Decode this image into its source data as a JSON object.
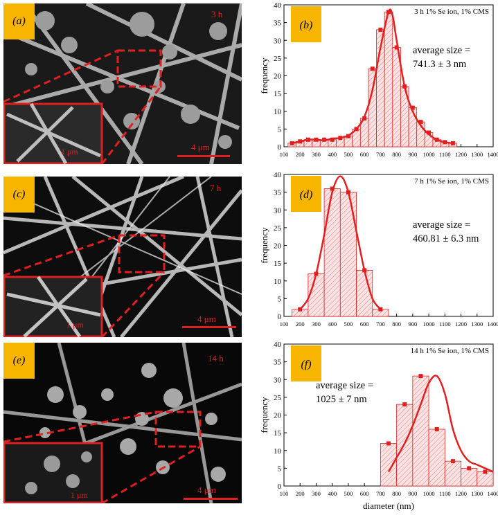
{
  "sem_panels": [
    {
      "tag": "(a)",
      "time": "3 h",
      "scale": "4 μm",
      "inset_scale": "1 μm"
    },
    {
      "tag": "(c)",
      "time": "7 h",
      "scale": "4 μm",
      "inset_scale": "1 μm"
    },
    {
      "tag": "(e)",
      "time": "14 h",
      "scale": "4 μm",
      "inset_scale": "1 μm"
    }
  ],
  "chart_data": [
    {
      "type": "bar",
      "panel_tag": "(b)",
      "title": "3 h 1% Se ion, 1% CMS",
      "annotation": [
        "average size =",
        "741.3 ± 3 nm"
      ],
      "ylabel": "frequency",
      "xlabel": "",
      "xlim": [
        100,
        1400
      ],
      "ylim": [
        0,
        40
      ],
      "xticks": [
        100,
        200,
        300,
        400,
        500,
        600,
        700,
        800,
        900,
        1000,
        1100,
        1200,
        1300,
        1400
      ],
      "yticks": [
        0,
        5,
        10,
        15,
        20,
        25,
        30,
        35,
        40
      ],
      "bin_width": 50,
      "bins": [
        150,
        200,
        250,
        300,
        350,
        400,
        450,
        500,
        550,
        600,
        650,
        700,
        750,
        800,
        850,
        900,
        950,
        1000,
        1050,
        1100,
        1150
      ],
      "values": [
        1,
        1.5,
        2,
        2,
        2,
        2,
        2.5,
        3,
        5,
        8,
        22,
        33,
        38,
        28,
        17,
        11,
        7,
        4,
        2,
        1.3,
        1
      ],
      "curve": [
        [
          150,
          1
        ],
        [
          200,
          1.5
        ],
        [
          250,
          2
        ],
        [
          300,
          2
        ],
        [
          350,
          1.8
        ],
        [
          400,
          2.3
        ],
        [
          450,
          2.5
        ],
        [
          500,
          3.2
        ],
        [
          550,
          5
        ],
        [
          600,
          8.5
        ],
        [
          650,
          16
        ],
        [
          700,
          28
        ],
        [
          750,
          38
        ],
        [
          775,
          37
        ],
        [
          800,
          30
        ],
        [
          850,
          17
        ],
        [
          900,
          10
        ],
        [
          950,
          6
        ],
        [
          1000,
          3.5
        ],
        [
          1050,
          2
        ],
        [
          1100,
          1.3
        ],
        [
          1150,
          1
        ]
      ],
      "color": "#e02020"
    },
    {
      "type": "bar",
      "panel_tag": "(d)",
      "title": "7 h 1% Se ion, 1% CMS",
      "annotation": [
        "average size =",
        "460.81 ± 6.3 nm"
      ],
      "ylabel": "frequency",
      "xlabel": "",
      "xlim": [
        100,
        1400
      ],
      "ylim": [
        0,
        40
      ],
      "xticks": [
        100,
        200,
        300,
        400,
        500,
        600,
        700,
        800,
        900,
        1000,
        1100,
        1200,
        1300,
        1400
      ],
      "yticks": [
        0,
        5,
        10,
        15,
        20,
        25,
        30,
        35,
        40
      ],
      "bin_width": 100,
      "bins": [
        200,
        300,
        400,
        500,
        600,
        700
      ],
      "values": [
        2,
        12,
        36,
        35,
        13,
        2
      ],
      "curve": [
        [
          200,
          2
        ],
        [
          250,
          5
        ],
        [
          300,
          12
        ],
        [
          350,
          23
        ],
        [
          400,
          35
        ],
        [
          450,
          39.5
        ],
        [
          500,
          35
        ],
        [
          550,
          24
        ],
        [
          600,
          13
        ],
        [
          650,
          5
        ],
        [
          700,
          2
        ]
      ],
      "color": "#e02020"
    },
    {
      "type": "bar",
      "panel_tag": "(f)",
      "title": "14 h 1% Se ion, 1% CMS",
      "annotation": [
        "average size =",
        "1025 ± 7 nm"
      ],
      "ylabel": "frequency",
      "xlabel": "diameter (nm)",
      "xlim": [
        100,
        1400
      ],
      "ylim": [
        0,
        40
      ],
      "xticks": [
        100,
        200,
        300,
        400,
        500,
        600,
        700,
        800,
        900,
        1000,
        1100,
        1200,
        1300,
        1400
      ],
      "yticks": [
        0,
        5,
        10,
        15,
        20,
        25,
        30,
        35,
        40
      ],
      "bin_width": 100,
      "bins": [
        750,
        850,
        950,
        1050,
        1150,
        1250,
        1350
      ],
      "values": [
        12,
        23,
        31,
        16,
        7,
        5,
        4
      ],
      "curve": [
        [
          750,
          4
        ],
        [
          800,
          8
        ],
        [
          850,
          12
        ],
        [
          900,
          17
        ],
        [
          950,
          23
        ],
        [
          1000,
          29
        ],
        [
          1050,
          31
        ],
        [
          1100,
          26
        ],
        [
          1150,
          16
        ],
        [
          1200,
          10
        ],
        [
          1250,
          7
        ],
        [
          1300,
          6
        ],
        [
          1350,
          5
        ],
        [
          1400,
          4
        ]
      ],
      "color": "#e02020"
    }
  ]
}
